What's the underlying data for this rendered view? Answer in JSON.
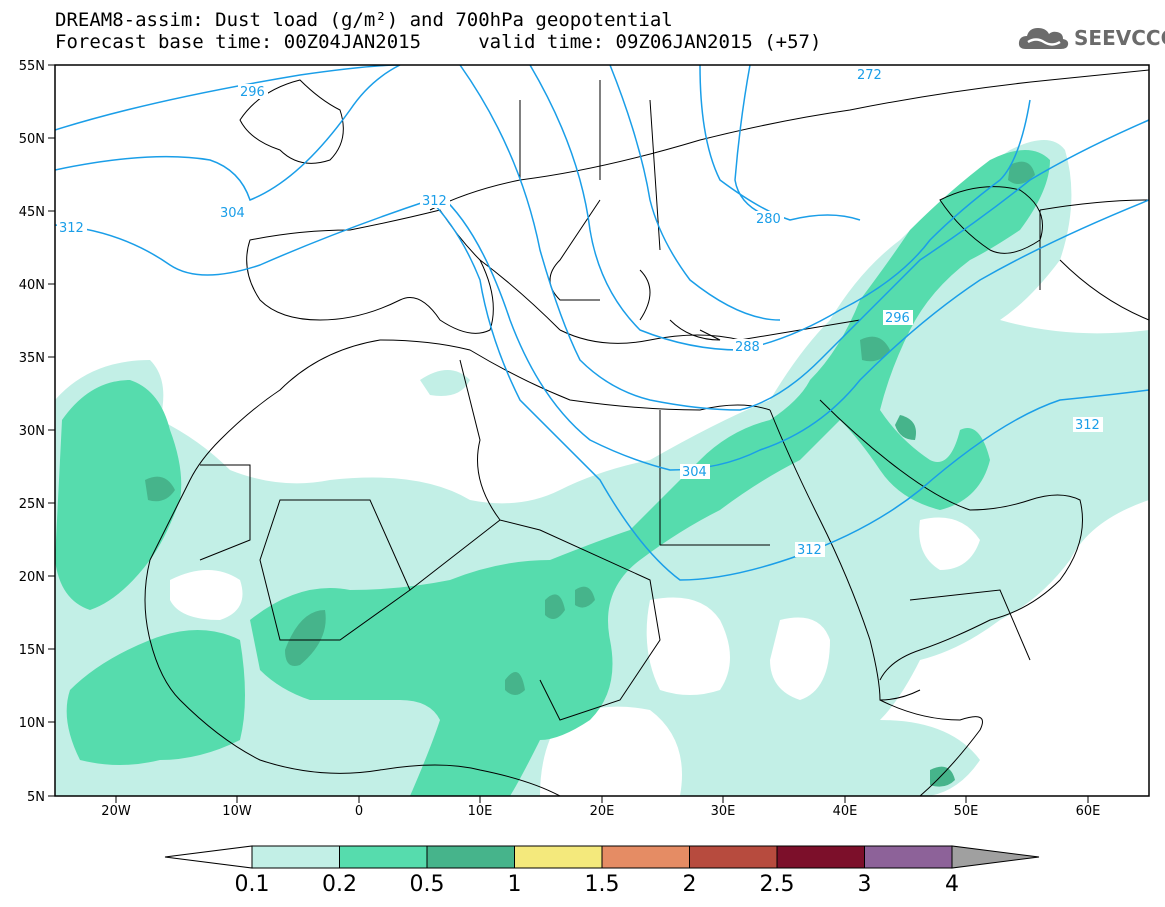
{
  "header": {
    "title_line1": "DREAM8-assim: Dust load (g/m²) and 700hPa geopotential",
    "title_line2": "Forecast base time: 00Z04JAN2015     valid time: 09Z06JAN2015 (+57)"
  },
  "logo": {
    "text": "SEEVCCC",
    "icon": "cloud-icon"
  },
  "map": {
    "lon_range": [
      -25,
      65
    ],
    "lat_range": [
      5,
      55
    ],
    "lat_ticks": [
      "55N",
      "50N",
      "45N",
      "40N",
      "35N",
      "30N",
      "25N",
      "20N",
      "15N",
      "10N",
      "5N"
    ],
    "lon_ticks": [
      "20W",
      "10W",
      "0",
      "10E",
      "20E",
      "30E",
      "40E",
      "50E",
      "60E"
    ],
    "contour_labels": [
      "296",
      "272",
      "304",
      "312",
      "312",
      "280",
      "288",
      "296",
      "304",
      "312",
      "312"
    ]
  },
  "colorbar": {
    "levels": [
      "0.1",
      "0.2",
      "0.5",
      "1",
      "1.5",
      "2",
      "2.5",
      "3",
      "4"
    ],
    "colors": [
      "#c2efe6",
      "#56dcad",
      "#46b48b",
      "#f4e97c",
      "#e58c64",
      "#b74b3e",
      "#7c0f2a",
      "#8d6299",
      "#a0a0a0"
    ],
    "low_end_color": "#ffffff"
  },
  "colors": {
    "contour": "#1a9ee8",
    "dust_light": "#c2efe6",
    "dust_mid": "#56dcad",
    "dust_high": "#46b48b"
  }
}
